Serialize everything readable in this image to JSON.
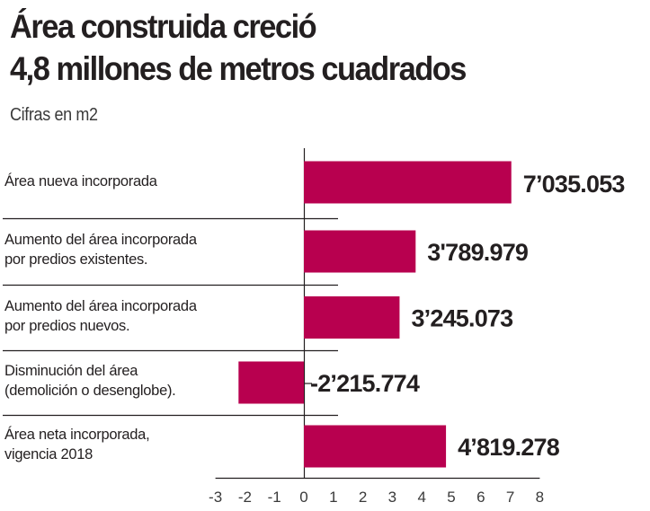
{
  "header": {
    "title_line1": "Área construida creció",
    "title_line2": "4,8 millones de metros cuadrados",
    "subtitle": "Cifras en m2"
  },
  "colors": {
    "bar": "#b8004f",
    "text": "#231f20",
    "axis": "#231f20"
  },
  "chart_data": {
    "type": "bar",
    "orientation": "horizontal",
    "title": "Área construida creció 4,8 millones de metros cuadrados",
    "subtitle": "Cifras en m2",
    "xlabel": "",
    "ylabel": "",
    "unit": "millones de m2 (axis)",
    "xlim": [
      -3,
      8
    ],
    "x_ticks": [
      "-3",
      "-2",
      "-1",
      "0",
      "1",
      "2",
      "3",
      "4",
      "5",
      "6",
      "7",
      "8"
    ],
    "grid": false,
    "legend": "none",
    "categories": [
      [
        "Área nueva incorporada"
      ],
      [
        "Aumento del área incorporada",
        "por predios existentes."
      ],
      [
        "Aumento del área incorporada",
        "por predios nuevos."
      ],
      [
        "Disminución del área",
        "(demolición o desenglobe)."
      ],
      [
        "Área neta incorporada,",
        "vigencia 2018"
      ]
    ],
    "values": [
      7.035053,
      3.789979,
      3.245073,
      -2.215774,
      4.819278
    ],
    "value_labels": [
      "7’035.053",
      "3'789.979",
      "3’245.073",
      "-2’215.774",
      "4’819.278"
    ]
  }
}
